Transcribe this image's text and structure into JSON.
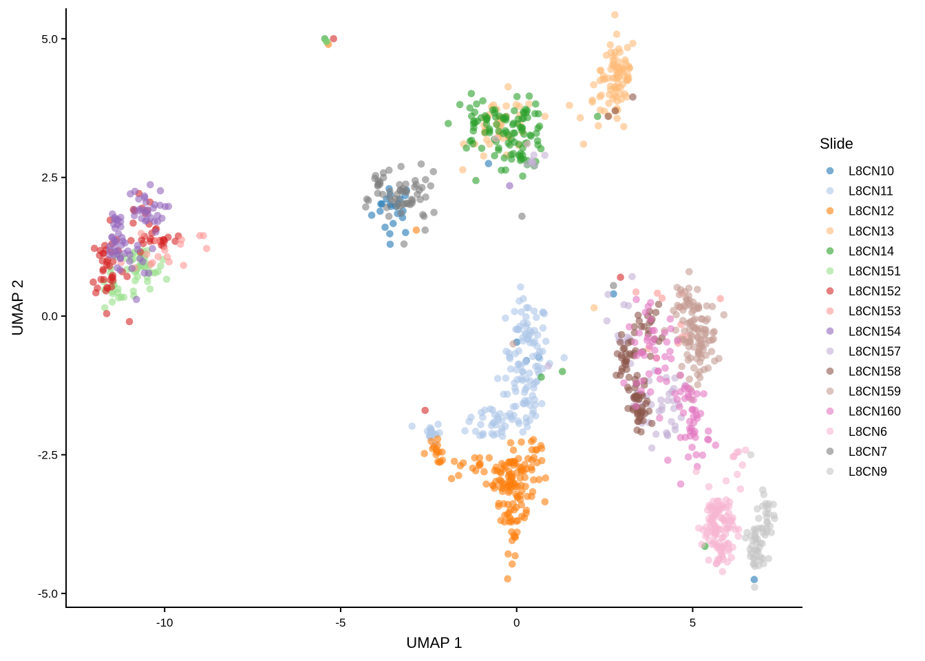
{
  "chart_data": {
    "type": "scatter",
    "xlabel": "UMAP 1",
    "ylabel": "UMAP 2",
    "xlim": [
      -12.8,
      8.1
    ],
    "ylim": [
      -5.25,
      5.55
    ],
    "xticks": [
      -10,
      -5,
      0,
      5
    ],
    "xtick_labels": [
      "-10",
      "-5",
      "0",
      "5"
    ],
    "yticks": [
      -5.0,
      -2.5,
      0.0,
      2.5,
      5.0
    ],
    "ytick_labels": [
      "-5.0",
      "-2.5",
      "0.0",
      "2.5",
      "5.0"
    ],
    "grid": false,
    "legend_title": "Slide",
    "legend_position": "right",
    "point_alpha": 0.6,
    "series": [
      {
        "name": "L8CN10",
        "color": "#1f77b4",
        "clusters": [
          {
            "cx": -3.5,
            "cy": 1.95,
            "sx": 0.3,
            "sy": 0.25,
            "n": 22
          },
          {
            "cx": 0.5,
            "cy": -0.7,
            "sx": 0.3,
            "sy": 0.4,
            "n": 3
          }
        ],
        "points": [
          [
            -0.8,
            2.75
          ],
          [
            6.75,
            -4.75
          ],
          [
            2.75,
            0.4
          ]
        ]
      },
      {
        "name": "L8CN11",
        "color": "#aec7e8",
        "clusters": [
          {
            "cx": 0.3,
            "cy": -0.6,
            "sx": 0.3,
            "sy": 0.45,
            "n": 70
          },
          {
            "cx": 0.15,
            "cy": -1.5,
            "sx": 0.3,
            "sy": 0.35,
            "n": 40
          },
          {
            "cx": -0.6,
            "cy": -1.9,
            "sx": 0.4,
            "sy": 0.2,
            "n": 30
          },
          {
            "cx": -2.45,
            "cy": -2.1,
            "sx": 0.15,
            "sy": 0.1,
            "n": 15
          }
        ],
        "points": [
          [
            1.35,
            -0.75
          ],
          [
            -1.35,
            -1.9
          ]
        ]
      },
      {
        "name": "L8CN12",
        "color": "#ff7f0e",
        "clusters": [
          {
            "cx": -0.15,
            "cy": -2.85,
            "sx": 0.35,
            "sy": 0.25,
            "n": 70
          },
          {
            "cx": -0.05,
            "cy": -3.55,
            "sx": 0.2,
            "sy": 0.35,
            "n": 45
          },
          {
            "cx": -2.3,
            "cy": -2.45,
            "sx": 0.2,
            "sy": 0.1,
            "n": 15
          },
          {
            "cx": -1.3,
            "cy": -2.75,
            "sx": 0.4,
            "sy": 0.1,
            "n": 15
          },
          {
            "cx": 0.5,
            "cy": -2.55,
            "sx": 0.2,
            "sy": 0.2,
            "n": 12
          }
        ],
        "points": [
          [
            -5.35,
            4.9
          ],
          [
            -2.85,
            1.55
          ]
        ]
      },
      {
        "name": "L8CN13",
        "color": "#ffbb78",
        "clusters": [
          {
            "cx": 2.9,
            "cy": 4.45,
            "sx": 0.25,
            "sy": 0.3,
            "n": 55
          },
          {
            "cx": 2.6,
            "cy": 3.8,
            "sx": 0.3,
            "sy": 0.25,
            "n": 30
          },
          {
            "cx": -0.4,
            "cy": 3.4,
            "sx": 0.5,
            "sy": 0.3,
            "n": 40
          }
        ],
        "points": [
          [
            1.9,
            3.1
          ],
          [
            2.2,
            0.15
          ],
          [
            1.5,
            3.8
          ]
        ]
      },
      {
        "name": "L8CN14",
        "color": "#2ca02c",
        "clusters": [
          {
            "cx": 0.15,
            "cy": 3.25,
            "sx": 0.35,
            "sy": 0.3,
            "n": 60
          },
          {
            "cx": -0.9,
            "cy": 3.45,
            "sx": 0.45,
            "sy": 0.25,
            "n": 50
          }
        ],
        "points": [
          [
            -5.4,
            4.95
          ],
          [
            -5.45,
            5.0
          ],
          [
            1.3,
            -1.0
          ],
          [
            2.3,
            3.6
          ],
          [
            5.35,
            -4.15
          ],
          [
            0.7,
            -1.1
          ]
        ]
      },
      {
        "name": "L8CN151",
        "color": "#98df8a",
        "clusters": [
          {
            "cx": -10.7,
            "cy": 0.85,
            "sx": 0.4,
            "sy": 0.2,
            "n": 40
          },
          {
            "cx": -11.4,
            "cy": 0.45,
            "sx": 0.3,
            "sy": 0.2,
            "n": 15
          }
        ],
        "points": [
          [
            -5.4,
            4.95
          ],
          [
            -11.7,
            0.15
          ]
        ]
      },
      {
        "name": "L8CN152",
        "color": "#d62728",
        "clusters": [
          {
            "cx": -11.6,
            "cy": 0.9,
            "sx": 0.25,
            "sy": 0.3,
            "n": 35
          },
          {
            "cx": -10.2,
            "cy": 1.35,
            "sx": 0.4,
            "sy": 0.12,
            "n": 22
          },
          {
            "cx": -10.9,
            "cy": 1.85,
            "sx": 0.3,
            "sy": 0.2,
            "n": 10
          }
        ],
        "points": [
          [
            -5.2,
            5.0
          ],
          [
            -2.6,
            -1.7
          ],
          [
            2.95,
            0.7
          ],
          [
            -11.0,
            -0.1
          ]
        ]
      },
      {
        "name": "L8CN153",
        "color": "#ff9896",
        "clusters": [
          {
            "cx": -10.0,
            "cy": 1.2,
            "sx": 0.5,
            "sy": 0.2,
            "n": 15
          },
          {
            "cx": 4.7,
            "cy": 0.0,
            "sx": 0.5,
            "sy": 0.4,
            "n": 12
          }
        ],
        "points": [
          [
            -9.0,
            1.45
          ],
          [
            -8.9,
            1.45
          ]
        ]
      },
      {
        "name": "L8CN154",
        "color": "#9467bd",
        "clusters": [
          {
            "cx": -11.4,
            "cy": 1.45,
            "sx": 0.15,
            "sy": 0.3,
            "n": 30
          },
          {
            "cx": -10.6,
            "cy": 1.9,
            "sx": 0.3,
            "sy": 0.2,
            "n": 30
          },
          {
            "cx": -10.9,
            "cy": 1.05,
            "sx": 0.3,
            "sy": 0.15,
            "n": 15
          }
        ],
        "points": [
          [
            -0.2,
            2.35
          ],
          [
            -10.8,
            0.3
          ]
        ]
      },
      {
        "name": "L8CN157",
        "color": "#c5b0d5",
        "clusters": [
          {
            "cx": 4.0,
            "cy": -1.6,
            "sx": 0.35,
            "sy": 0.35,
            "n": 35
          },
          {
            "cx": 3.0,
            "cy": -0.3,
            "sx": 0.2,
            "sy": 0.5,
            "n": 12
          },
          {
            "cx": 0.35,
            "cy": 2.8,
            "sx": 0.3,
            "sy": 0.1,
            "n": 6
          }
        ],
        "points": [
          [
            0.8,
            2.9
          ],
          [
            0.9,
            -0.9
          ]
        ]
      },
      {
        "name": "L8CN158",
        "color": "#8c564b",
        "clusters": [
          {
            "cx": 3.5,
            "cy": -1.7,
            "sx": 0.15,
            "sy": 0.25,
            "n": 40
          },
          {
            "cx": 3.15,
            "cy": -0.8,
            "sx": 0.2,
            "sy": 0.3,
            "n": 30
          },
          {
            "cx": 3.7,
            "cy": -0.2,
            "sx": 0.2,
            "sy": 0.2,
            "n": 20
          }
        ],
        "points": [
          [
            2.8,
            3.7
          ],
          [
            3.3,
            3.95
          ],
          [
            2.6,
            3.6
          ]
        ]
      },
      {
        "name": "L8CN159",
        "color": "#c49c94",
        "clusters": [
          {
            "cx": 5.1,
            "cy": -0.4,
            "sx": 0.3,
            "sy": 0.35,
            "n": 90
          },
          {
            "cx": 4.9,
            "cy": 0.2,
            "sx": 0.2,
            "sy": 0.2,
            "n": 20
          }
        ],
        "points": [
          [
            4.9,
            0.8
          ],
          [
            -0.1,
            -0.5
          ]
        ]
      },
      {
        "name": "L8CN160",
        "color": "#e377c2",
        "clusters": [
          {
            "cx": 5.0,
            "cy": -1.9,
            "sx": 0.25,
            "sy": 0.4,
            "n": 45
          },
          {
            "cx": 3.9,
            "cy": -0.6,
            "sx": 0.4,
            "sy": 0.35,
            "n": 40
          }
        ],
        "points": [
          [
            5.1,
            -2.5
          ],
          [
            3.4,
            0.3
          ]
        ]
      },
      {
        "name": "L8CN6",
        "color": "#f7b6d2",
        "clusters": [
          {
            "cx": 5.7,
            "cy": -3.75,
            "sx": 0.22,
            "sy": 0.3,
            "n": 90
          },
          {
            "cx": 5.85,
            "cy": -4.25,
            "sx": 0.15,
            "sy": 0.15,
            "n": 20
          },
          {
            "cx": 6.3,
            "cy": -2.5,
            "sx": 0.15,
            "sy": 0.25,
            "n": 8
          }
        ],
        "points": [
          [
            5.1,
            -2.8
          ],
          [
            0.3,
            3.1
          ],
          [
            -0.6,
            3.2
          ]
        ]
      },
      {
        "name": "L8CN7",
        "color": "#7f7f7f",
        "clusters": [
          {
            "cx": -3.1,
            "cy": 2.1,
            "sx": 0.45,
            "sy": 0.22,
            "n": 50
          },
          {
            "cx": -3.95,
            "cy": 2.4,
            "sx": 0.1,
            "sy": 0.1,
            "n": 10
          }
        ],
        "points": [
          [
            0.15,
            1.8
          ],
          [
            -3.2,
            1.3
          ],
          [
            2.75,
            0.55
          ]
        ]
      },
      {
        "name": "L8CN9",
        "color": "#c7c7c7",
        "clusters": [
          {
            "cx": 6.8,
            "cy": -4.25,
            "sx": 0.12,
            "sy": 0.3,
            "n": 35
          },
          {
            "cx": 7.1,
            "cy": -3.6,
            "sx": 0.1,
            "sy": 0.25,
            "n": 25
          }
        ],
        "points": [
          [
            6.65,
            -2.5
          ],
          [
            6.5,
            -4.0
          ],
          [
            6.55,
            -3.9
          ]
        ]
      }
    ]
  }
}
